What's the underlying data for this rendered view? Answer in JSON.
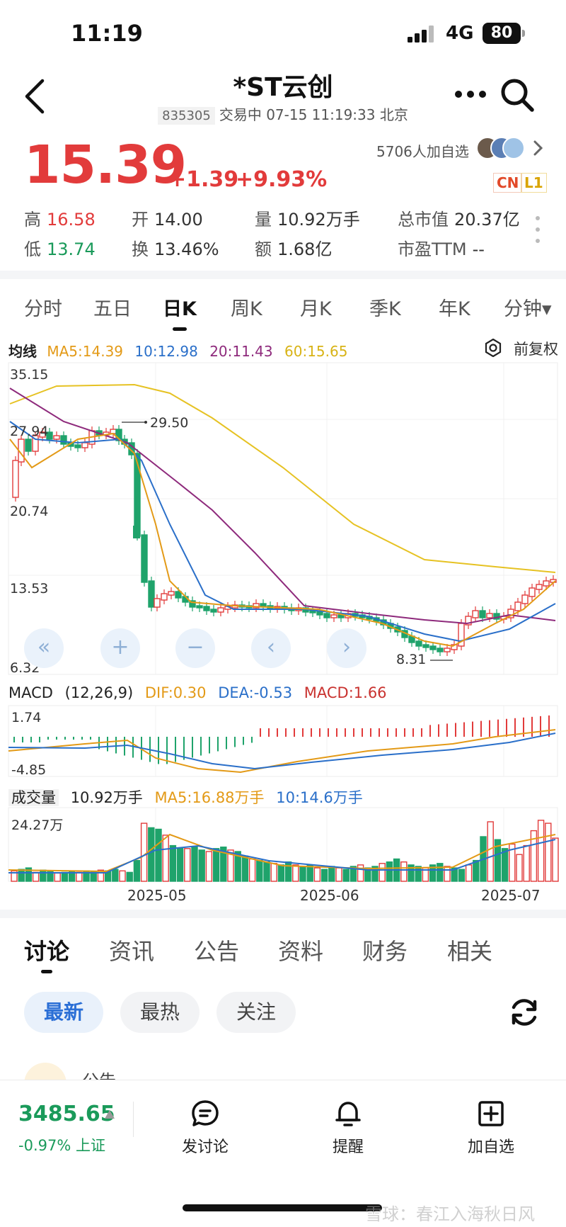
{
  "status": {
    "time": "11:19",
    "network": "4G",
    "battery": "80"
  },
  "header": {
    "title": "*ST云创",
    "code": "835305",
    "status_line": "交易中 07-15 11:19:33 北京"
  },
  "quote": {
    "price": "15.39",
    "change": "+1.39",
    "change_pct": "+9.93%",
    "watchers": "5706人加自选",
    "badge_cn": "CN",
    "badge_l1": "L1",
    "high_label": "高",
    "high": "16.58",
    "open_label": "开",
    "open": "14.00",
    "volume_label": "量",
    "volume": "10.92万手",
    "mktcap_label": "总市值",
    "mktcap": "20.37亿",
    "low_label": "低",
    "low": "13.74",
    "turnover_label": "换",
    "turnover": "13.46%",
    "amount_label": "额",
    "amount": "1.68亿",
    "pe_label": "市盈TTM",
    "pe": "--"
  },
  "period_tabs": [
    "分时",
    "五日",
    "日K",
    "周K",
    "月K",
    "季K",
    "年K",
    "分钟▾"
  ],
  "active_period": "日K",
  "kline": {
    "ma_title": "均线",
    "ma5": "MA5:14.39",
    "ma10": "10:12.98",
    "ma20": "20:11.43",
    "ma60": "60:15.65",
    "adjust": "前复权",
    "y_ticks": [
      "35.15",
      "27.94",
      "20.74",
      "13.53",
      "6.32"
    ],
    "high_marker": "29.50",
    "low_marker": "8.31",
    "colors": {
      "up": "#e23b3b",
      "down": "#1fa36b",
      "ma5": "#e39a17",
      "ma10": "#2a6fc9",
      "ma20": "#8e2a7c",
      "ma60": "#e6c223"
    }
  },
  "macd": {
    "title": "MACD",
    "params": "(12,26,9)",
    "dif": "DIF:0.30",
    "dea": "DEA:-0.53",
    "macd": "MACD:1.66",
    "y_ticks": [
      "1.74",
      "-4.85"
    ]
  },
  "volume": {
    "title": "成交量",
    "value": "10.92万手",
    "ma5": "MA5:16.88万手",
    "ma10": "10:14.6万手",
    "y_max": "24.27万"
  },
  "x_dates": [
    "2025-05",
    "2025-06",
    "2025-07"
  ],
  "section_tabs": [
    "讨论",
    "资讯",
    "公告",
    "资料",
    "财务",
    "相关"
  ],
  "active_section": "讨论",
  "filters": [
    "最新",
    "最热",
    "关注"
  ],
  "active_filter": "最新",
  "feed_peek": "公告",
  "bottom_bar": {
    "index_value": "3485.65",
    "index_change": "-0.97%",
    "index_name": "上证",
    "post": "发讨论",
    "alert": "提醒",
    "add": "加自选"
  },
  "watermark": "雪球：春江入海秋日风"
}
